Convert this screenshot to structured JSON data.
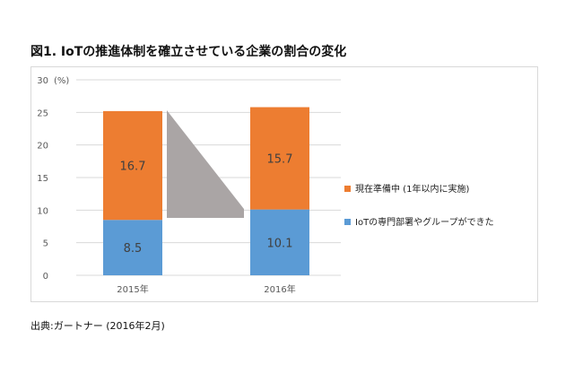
{
  "title": "図1. IoTの推進体制を確立させている企業の割合の変化",
  "source": "出典:ガートナー (2016年2月)",
  "colors": {
    "blue": "#5b9bd5",
    "orange": "#ed7d31",
    "arrow": "#aaa5a5",
    "grid": "#d9d9d9"
  },
  "chart_data": {
    "type": "bar",
    "stacked": true,
    "categories": [
      "2015年",
      "2016年"
    ],
    "series": [
      {
        "name": "IoTの専門部署やグループができた",
        "values": [
          8.5,
          10.1
        ],
        "color": "#5b9bd5"
      },
      {
        "name": "現在準備中 (1年以内に実施)",
        "values": [
          16.7,
          15.7
        ],
        "color": "#ed7d31"
      }
    ],
    "yunit": "(%)",
    "ylim": [
      0,
      30
    ],
    "yticks": [
      0,
      5,
      10,
      15,
      20,
      25,
      30
    ],
    "grid": true,
    "legend": "right"
  }
}
